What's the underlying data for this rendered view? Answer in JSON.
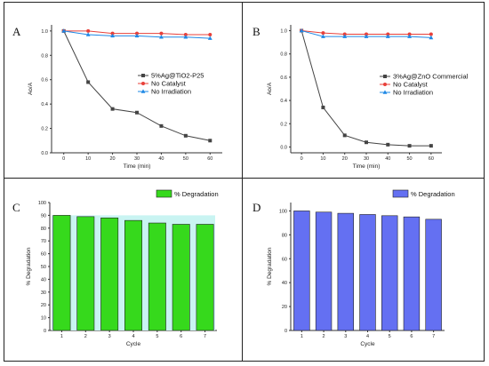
{
  "panels": {
    "A": {
      "label": "A"
    },
    "B": {
      "label": "B"
    },
    "C": {
      "label": "C"
    },
    "D": {
      "label": "D"
    }
  },
  "chart_data": [
    {
      "id": "A",
      "type": "line",
      "xlabel": "Time (min)",
      "ylabel": "Ao/A",
      "x": [
        0,
        10,
        20,
        30,
        40,
        50,
        60
      ],
      "xlim": [
        -5,
        65
      ],
      "ylim": [
        0,
        1.05
      ],
      "xticks": [
        0,
        10,
        20,
        30,
        40,
        50,
        60
      ],
      "yticks": [
        0.0,
        0.2,
        0.4,
        0.6,
        0.8,
        1.0
      ],
      "legend_position": "center-right",
      "series": [
        {
          "name": "5%Ag@TiO2-P25",
          "color": "#444444",
          "marker": "square",
          "values": [
            1.0,
            0.58,
            0.36,
            0.33,
            0.22,
            0.14,
            0.1
          ]
        },
        {
          "name": "No Catalyst",
          "color": "#e8403a",
          "marker": "circle",
          "values": [
            1.0,
            1.0,
            0.98,
            0.98,
            0.98,
            0.97,
            0.97
          ]
        },
        {
          "name": "No Irradiation",
          "color": "#1e88e5",
          "marker": "triangle",
          "values": [
            1.0,
            0.97,
            0.96,
            0.96,
            0.95,
            0.95,
            0.94
          ]
        }
      ]
    },
    {
      "id": "B",
      "type": "line",
      "xlabel": "Time (min)",
      "ylabel": "Ao/A",
      "x": [
        0,
        10,
        20,
        30,
        40,
        50,
        60
      ],
      "xlim": [
        -5,
        65
      ],
      "ylim": [
        -0.05,
        1.05
      ],
      "xticks": [
        0,
        10,
        20,
        30,
        40,
        50,
        60
      ],
      "yticks": [
        0.0,
        0.2,
        0.4,
        0.6,
        0.8,
        1.0
      ],
      "legend_position": "top-right",
      "series": [
        {
          "name": "3%Ag@ZnO Commercial",
          "color": "#444444",
          "marker": "square",
          "values": [
            1.0,
            0.34,
            0.1,
            0.04,
            0.02,
            0.01,
            0.01
          ]
        },
        {
          "name": "No Catalyst",
          "color": "#e8403a",
          "marker": "circle",
          "values": [
            1.0,
            0.98,
            0.97,
            0.97,
            0.97,
            0.97,
            0.97
          ]
        },
        {
          "name": "No Irradiation",
          "color": "#1e88e5",
          "marker": "triangle",
          "values": [
            1.0,
            0.95,
            0.95,
            0.95,
            0.95,
            0.95,
            0.94
          ]
        }
      ]
    },
    {
      "id": "C",
      "type": "bar",
      "xlabel": "Cycle",
      "ylabel": "% Degradation",
      "categories": [
        "1",
        "2",
        "3",
        "4",
        "5",
        "6",
        "7"
      ],
      "ylim": [
        0,
        100
      ],
      "yticks": [
        0,
        10,
        20,
        30,
        40,
        50,
        60,
        70,
        80,
        90,
        100
      ],
      "legend_position": "top-right",
      "color": "#36d91c",
      "series": [
        {
          "name": "% Degradation",
          "values": [
            90,
            89,
            88,
            86,
            84,
            83,
            83
          ]
        }
      ]
    },
    {
      "id": "D",
      "type": "bar",
      "xlabel": "Cycle",
      "ylabel": "% Degradation",
      "categories": [
        "1",
        "2",
        "3",
        "4",
        "5",
        "6",
        "7"
      ],
      "ylim": [
        0,
        107
      ],
      "yticks": [
        0,
        20,
        40,
        60,
        80,
        100
      ],
      "legend_position": "top-right",
      "color": "#6470f2",
      "series": [
        {
          "name": "% Degradation",
          "values": [
            100,
            99,
            98,
            97,
            96,
            95,
            93
          ]
        }
      ]
    }
  ]
}
